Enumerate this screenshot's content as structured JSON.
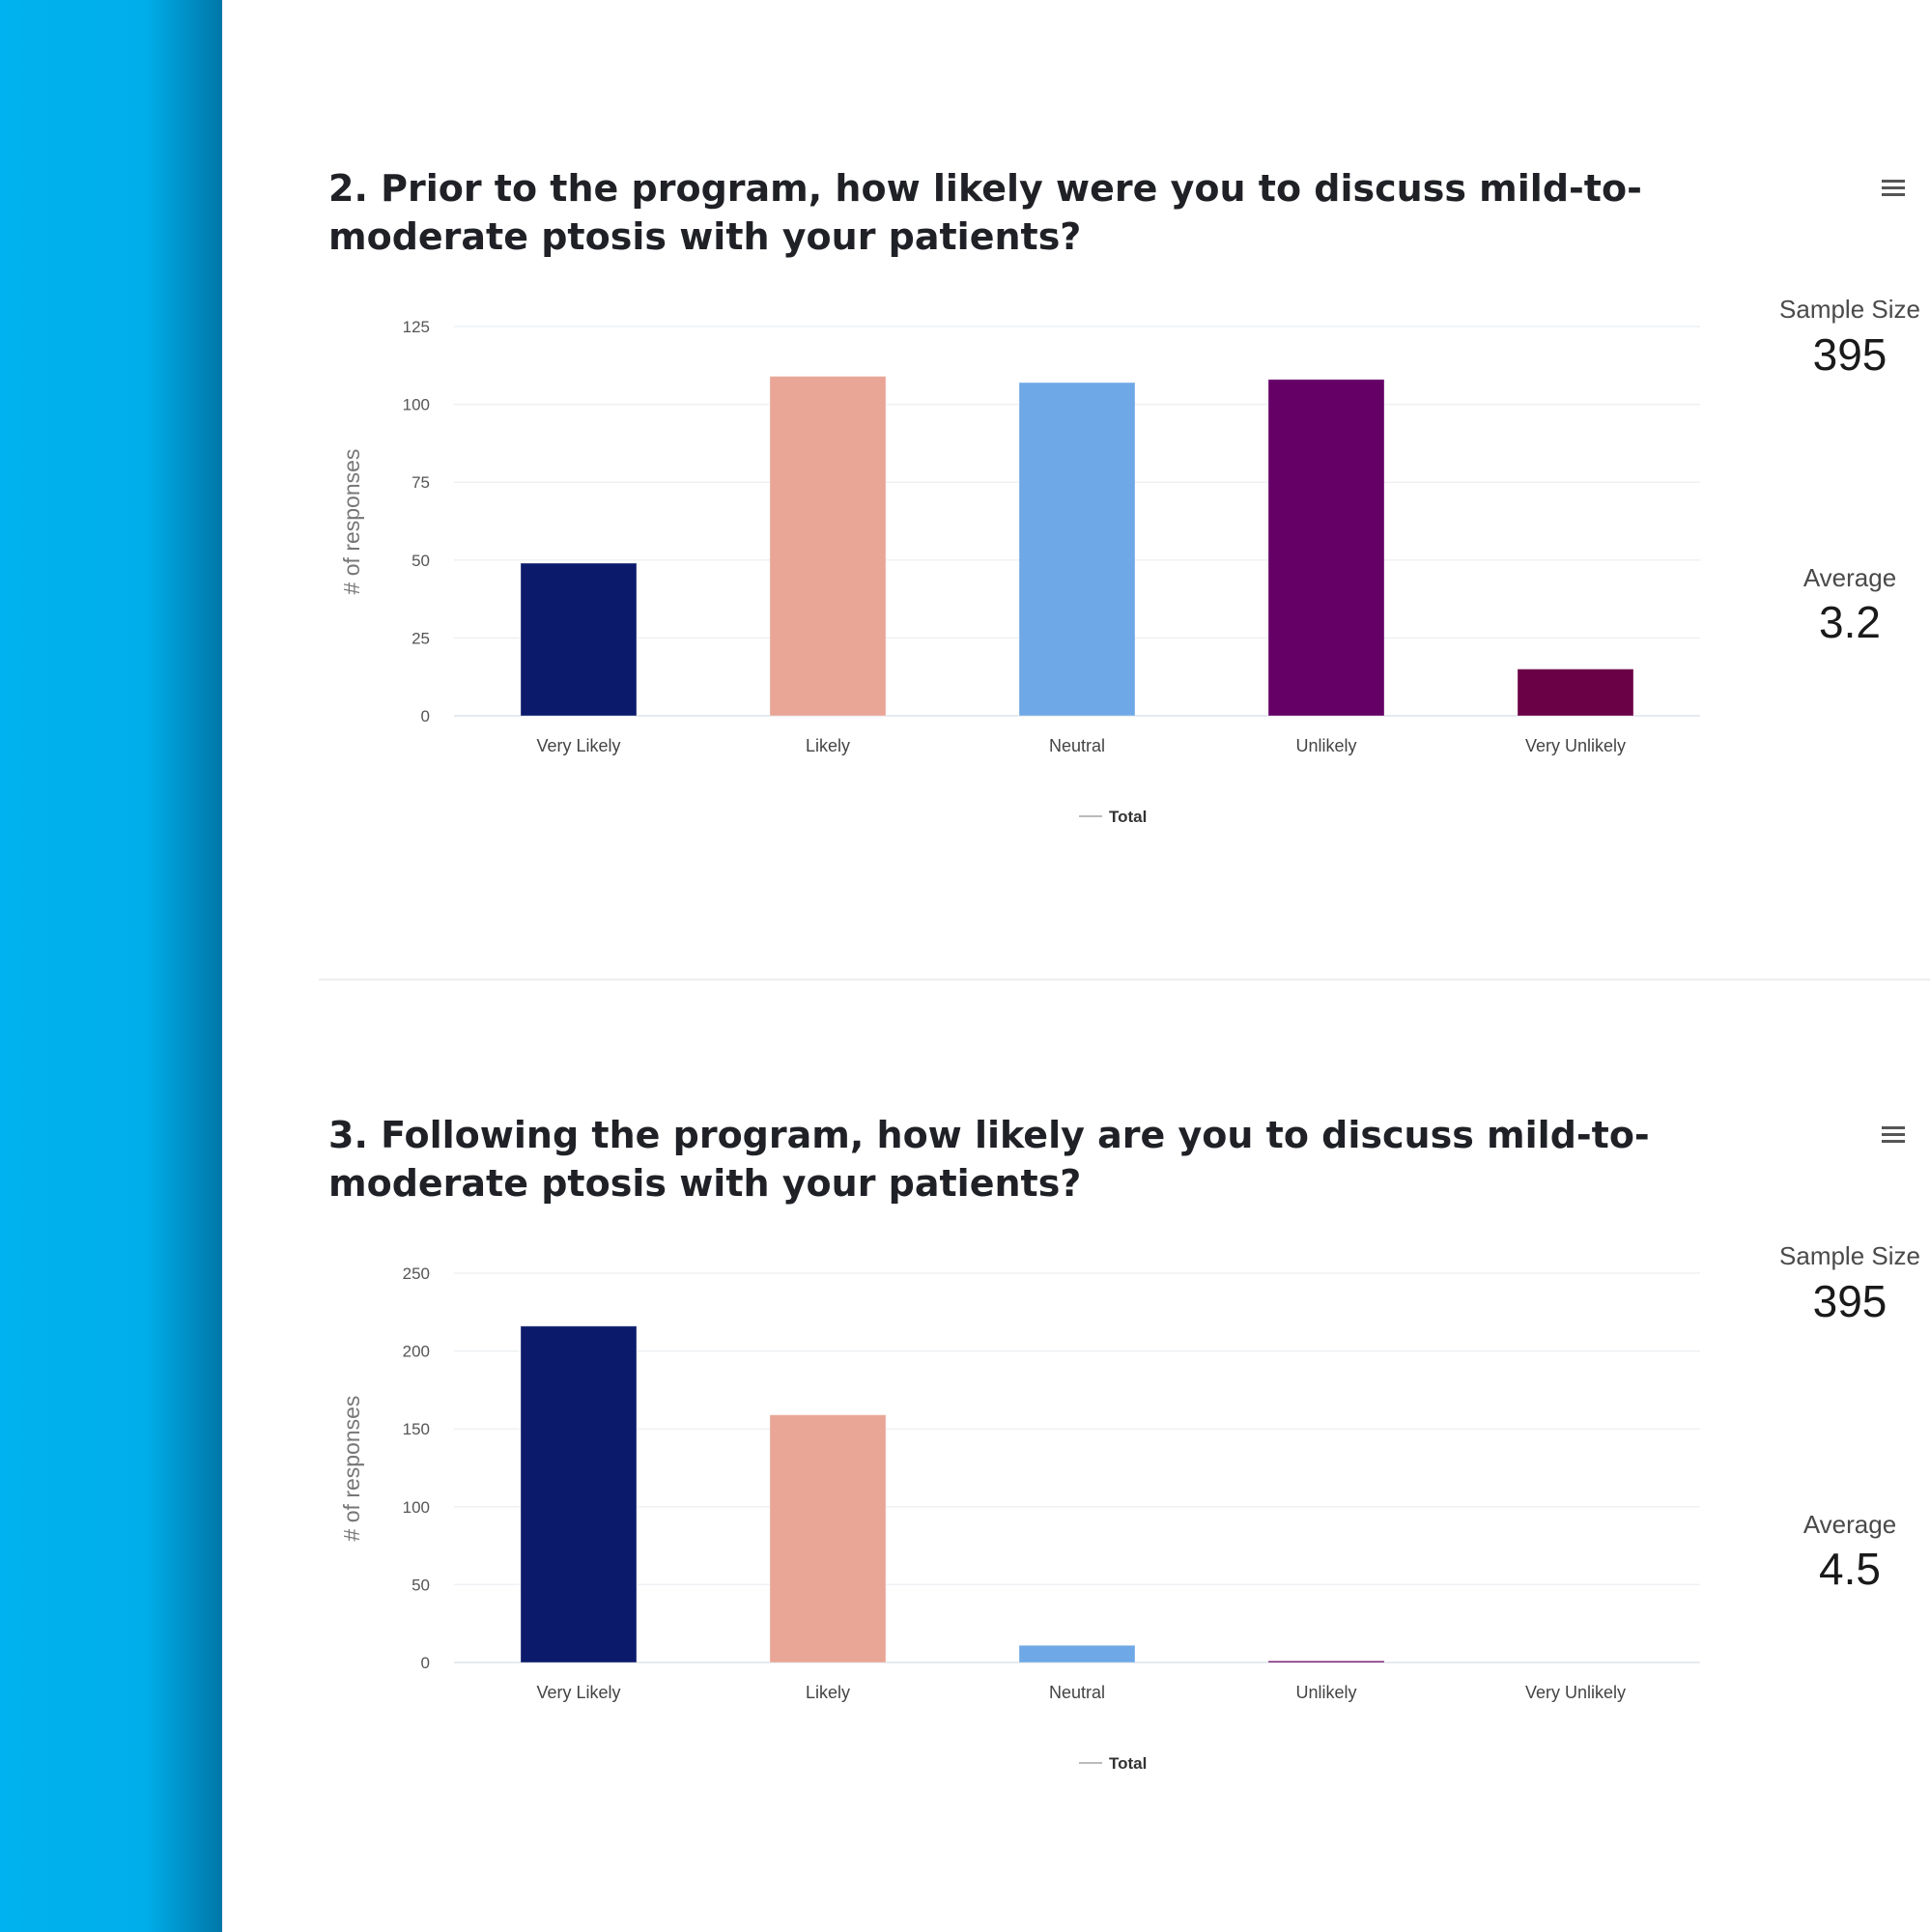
{
  "colors": {
    "very_likely": "#0b1a6b",
    "likely": "#e9a595",
    "neutral": "#6fa8e6",
    "unlikely": "#650066",
    "very_unlikely": "#6a0045"
  },
  "chart_data": [
    {
      "type": "bar",
      "title": "2. Prior to the program, how likely were you to discuss mild-to-moderate ptosis with your patients?",
      "categories": [
        "Very Likely",
        "Likely",
        "Neutral",
        "Unlikely",
        "Very Unlikely"
      ],
      "values": [
        49,
        109,
        107,
        108,
        15
      ],
      "ylabel": "# of responses",
      "xlabel": "",
      "ylim": [
        0,
        125
      ],
      "yticks": [
        "0",
        "25",
        "50",
        "75",
        "100",
        "125"
      ],
      "legend": "Total",
      "grid": true,
      "sample_size_label": "Sample Size",
      "sample_size": "395",
      "average_label": "Average",
      "average": "3.2"
    },
    {
      "type": "bar",
      "title": "3. Following the program, how likely are you to discuss mild-to-moderate ptosis with your patients?",
      "categories": [
        "Very Likely",
        "Likely",
        "Neutral",
        "Unlikely",
        "Very Unlikely"
      ],
      "values": [
        216,
        159,
        11,
        1,
        0
      ],
      "ylabel": "# of responses",
      "xlabel": "",
      "ylim": [
        0,
        250
      ],
      "yticks": [
        "0",
        "50",
        "100",
        "150",
        "200",
        "250"
      ],
      "legend": "Total",
      "grid": true,
      "sample_size_label": "Sample Size",
      "sample_size": "395",
      "average_label": "Average",
      "average": "4.5"
    }
  ]
}
